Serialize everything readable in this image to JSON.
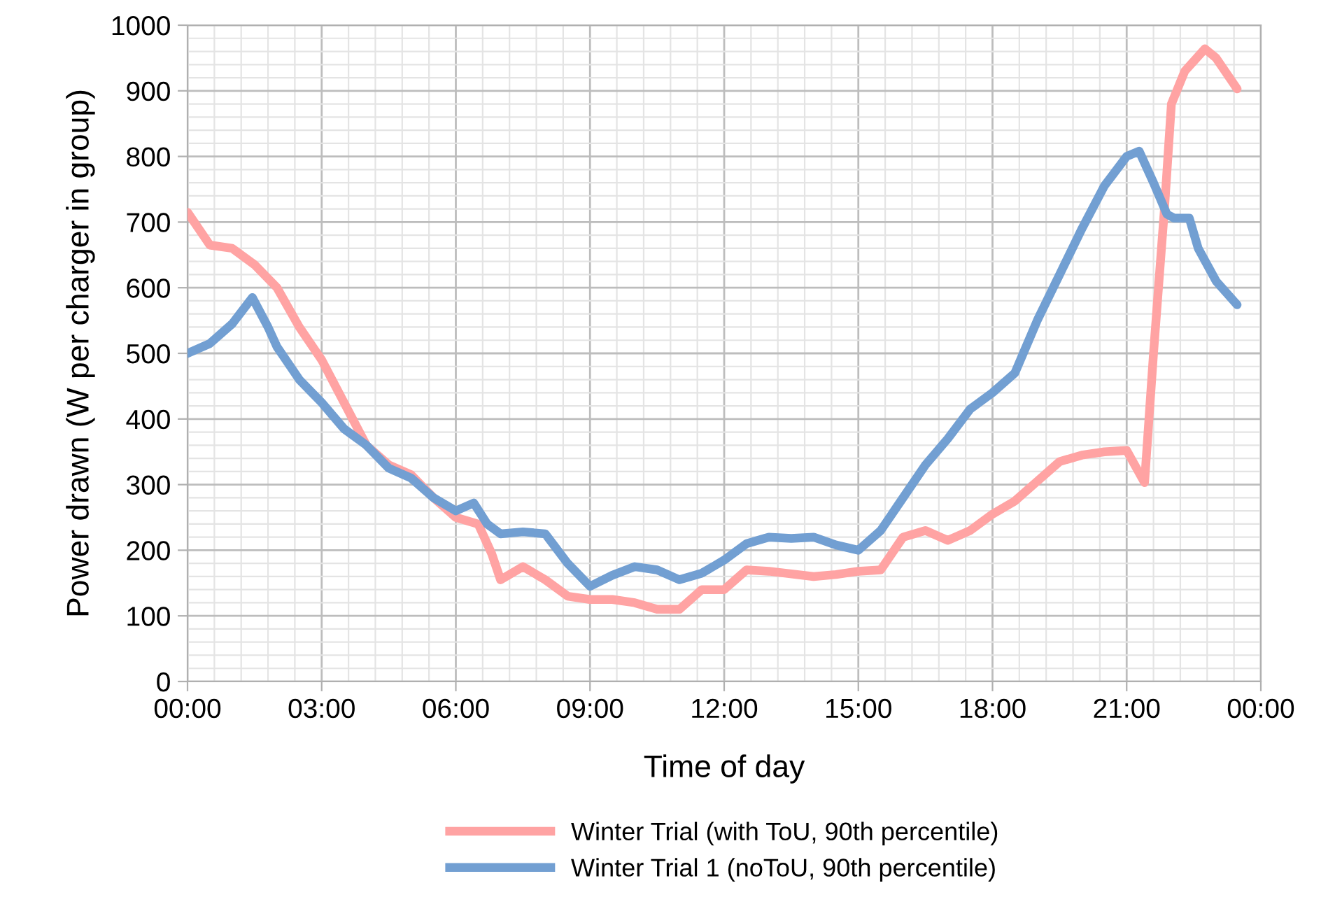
{
  "chart_data": {
    "type": "line",
    "xlabel": "Time of day",
    "ylabel": "Power drawn (W per charger in group)",
    "xlim": [
      0,
      24
    ],
    "ylim": [
      0,
      1000
    ],
    "xticks": [
      {
        "value": 0,
        "label": "00:00"
      },
      {
        "value": 3,
        "label": "03:00"
      },
      {
        "value": 6,
        "label": "06:00"
      },
      {
        "value": 9,
        "label": "09:00"
      },
      {
        "value": 12,
        "label": "12:00"
      },
      {
        "value": 15,
        "label": "15:00"
      },
      {
        "value": 18,
        "label": "18:00"
      },
      {
        "value": 21,
        "label": "21:00"
      },
      {
        "value": 24,
        "label": "00:00"
      }
    ],
    "yticks": [
      0,
      100,
      200,
      300,
      400,
      500,
      600,
      700,
      800,
      900,
      1000
    ],
    "grid": true,
    "legend": "bottom",
    "marker": "none",
    "line_style": "solid",
    "series": [
      {
        "name": "Winter Trial (with ToU, 90th percentile)",
        "color": "#ffa3a3",
        "x": [
          0,
          0.5,
          1.0,
          1.5,
          2.0,
          2.5,
          3.0,
          3.5,
          4.0,
          4.5,
          5.0,
          5.5,
          6.0,
          6.5,
          6.8,
          7.0,
          7.5,
          8.0,
          8.5,
          9.0,
          9.5,
          10.0,
          10.5,
          11.0,
          11.5,
          12.0,
          12.5,
          13.0,
          14.0,
          14.5,
          15.0,
          15.5,
          16.0,
          16.5,
          17.0,
          17.5,
          18.0,
          18.5,
          19.0,
          19.5,
          20.0,
          20.5,
          21.0,
          21.4,
          21.6,
          21.85,
          22.0,
          22.3,
          22.75,
          23.0,
          23.47
        ],
        "values": [
          715,
          665,
          660,
          635,
          600,
          540,
          490,
          425,
          360,
          330,
          315,
          280,
          250,
          240,
          195,
          155,
          175,
          155,
          130,
          125,
          125,
          120,
          110,
          110,
          140,
          140,
          170,
          168,
          160,
          163,
          168,
          170,
          220,
          230,
          215,
          230,
          255,
          275,
          305,
          335,
          345,
          350,
          352,
          303,
          500,
          725,
          880,
          930,
          964,
          950,
          903
        ]
      },
      {
        "name": "Winter Trial 1 (noToU, 90th percentile)",
        "color": "#729fd2",
        "x": [
          0,
          0.5,
          1.0,
          1.45,
          1.8,
          2.0,
          2.5,
          3.0,
          3.5,
          4.0,
          4.5,
          5.0,
          5.5,
          6.0,
          6.4,
          6.7,
          7.0,
          7.5,
          8.0,
          8.5,
          9.0,
          9.5,
          10.0,
          10.5,
          11.0,
          11.5,
          12.0,
          12.5,
          13.0,
          13.5,
          14.0,
          14.5,
          15.0,
          15.5,
          16.0,
          16.5,
          17.0,
          17.5,
          18.0,
          18.5,
          19.0,
          19.5,
          20.0,
          20.5,
          21.0,
          21.28,
          21.6,
          21.9,
          22.06,
          22.4,
          22.6,
          23.0,
          23.47
        ],
        "values": [
          500,
          515,
          545,
          585,
          540,
          510,
          460,
          425,
          385,
          360,
          325,
          310,
          280,
          260,
          272,
          240,
          225,
          228,
          225,
          180,
          145,
          162,
          175,
          170,
          155,
          165,
          185,
          210,
          220,
          218,
          220,
          208,
          200,
          230,
          280,
          330,
          370,
          415,
          440,
          470,
          550,
          620,
          690,
          755,
          800,
          808,
          760,
          712,
          706,
          706,
          660,
          610,
          574
        ]
      }
    ]
  }
}
